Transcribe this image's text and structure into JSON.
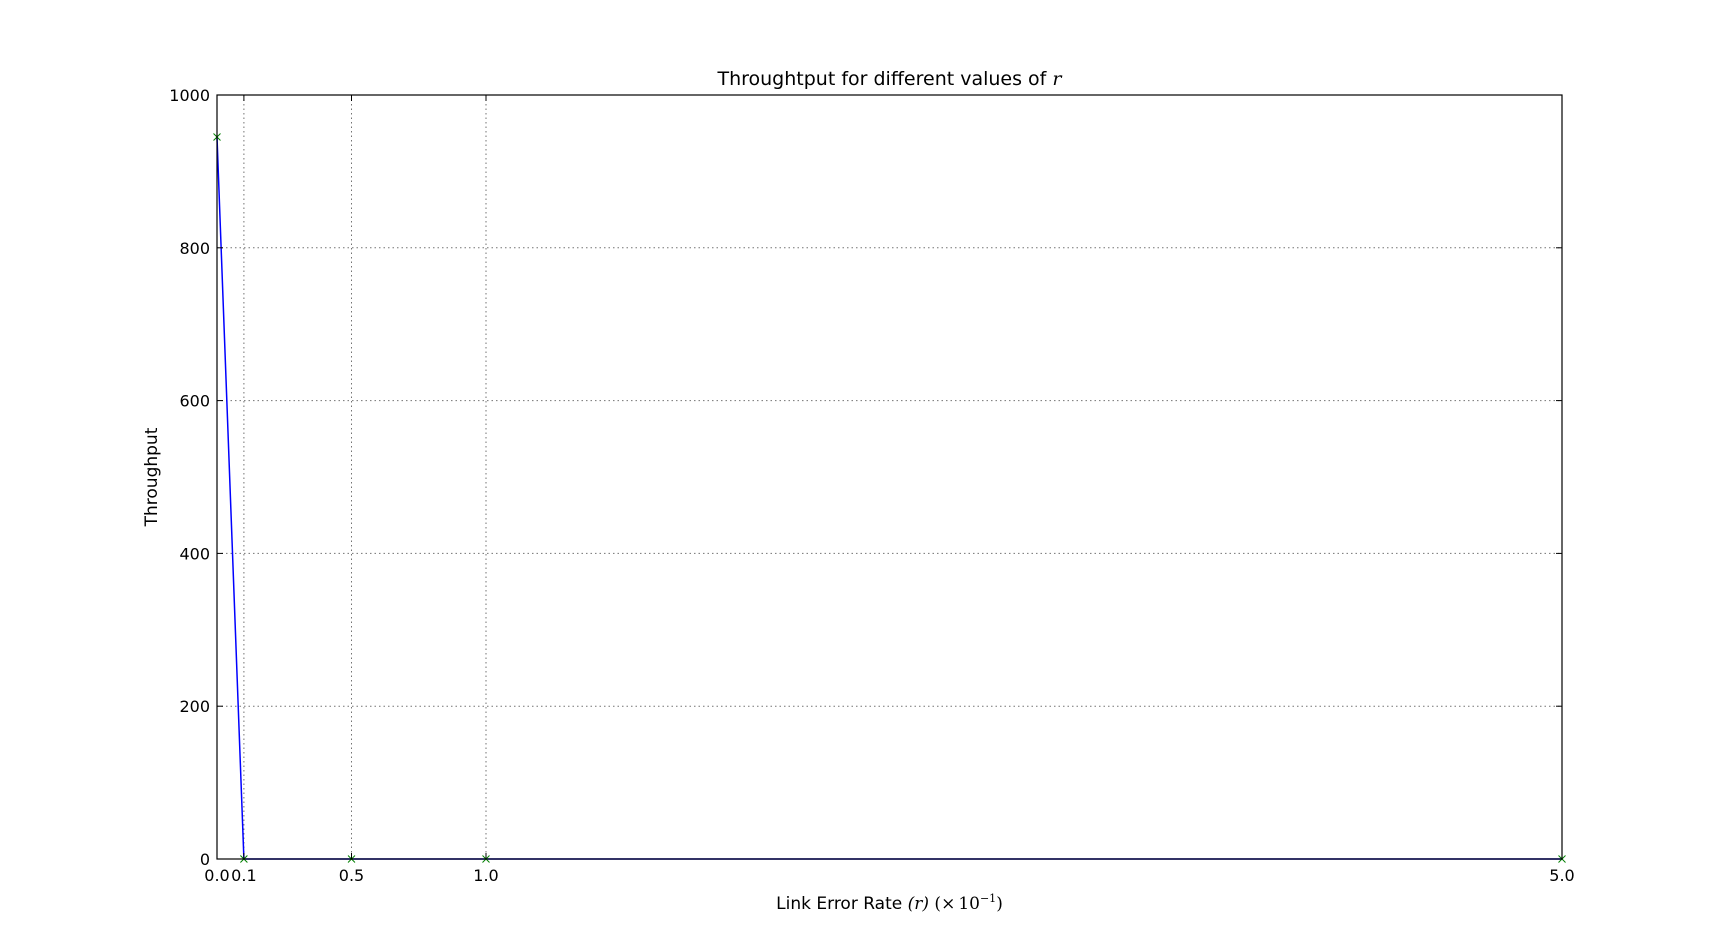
{
  "chart_data": {
    "type": "line",
    "title": "Throughtput for different values of ",
    "title_math": "r",
    "xlabel": "Link Error Rate ",
    "xlabel_math": {
      "var": "(r)",
      "open": " (",
      "times": "×",
      "base": "10",
      "exponent": "−1",
      "close": ")"
    },
    "ylabel": "Throughput",
    "xlim": [
      0.0,
      5.0
    ],
    "ylim": [
      0,
      1000
    ],
    "x_ticks": [
      0.0,
      0.1,
      0.5,
      1.0,
      5.0
    ],
    "x_tick_labels": [
      "0.0",
      "0.1",
      "0.5",
      "1.0",
      "5.0"
    ],
    "y_ticks": [
      0,
      200,
      400,
      600,
      800,
      1000
    ],
    "y_tick_labels": [
      "0",
      "200",
      "400",
      "600",
      "800",
      "1000"
    ],
    "grid": true,
    "series": [
      {
        "x": [
          0.0,
          0.1,
          0.5,
          1.0,
          5.0
        ],
        "y": [
          945,
          0,
          0,
          0,
          0
        ],
        "color": "#0000ff",
        "marker": "x",
        "marker_color": "#008000"
      }
    ]
  }
}
